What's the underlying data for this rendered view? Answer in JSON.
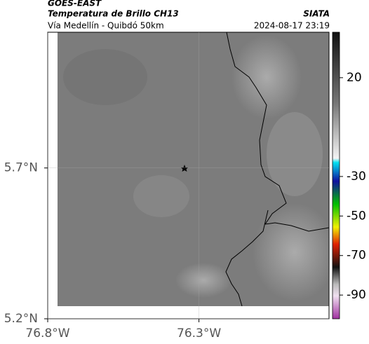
{
  "header": {
    "satellite": "GOES-EAST",
    "product": "Temperatura de Brillo CH13",
    "organization": "SIATA",
    "route": "Vía Medellín - Quibdó 50km",
    "timestamp": "2024-08-17 23:19"
  },
  "map": {
    "xlim": [
      -76.8,
      -75.87
    ],
    "ylim": [
      5.2,
      6.15
    ],
    "xticks": [
      {
        "value": -76.8,
        "label": "76.8°W"
      },
      {
        "value": -76.3,
        "label": "76.3°W"
      }
    ],
    "yticks": [
      {
        "value": 5.2,
        "label": "5.2°N"
      },
      {
        "value": 5.7,
        "label": "5.7°N"
      }
    ]
  },
  "colorbar": {
    "lim": [
      -102,
      43
    ],
    "ticks": [
      20,
      -30,
      -50,
      -70,
      -90
    ]
  }
}
